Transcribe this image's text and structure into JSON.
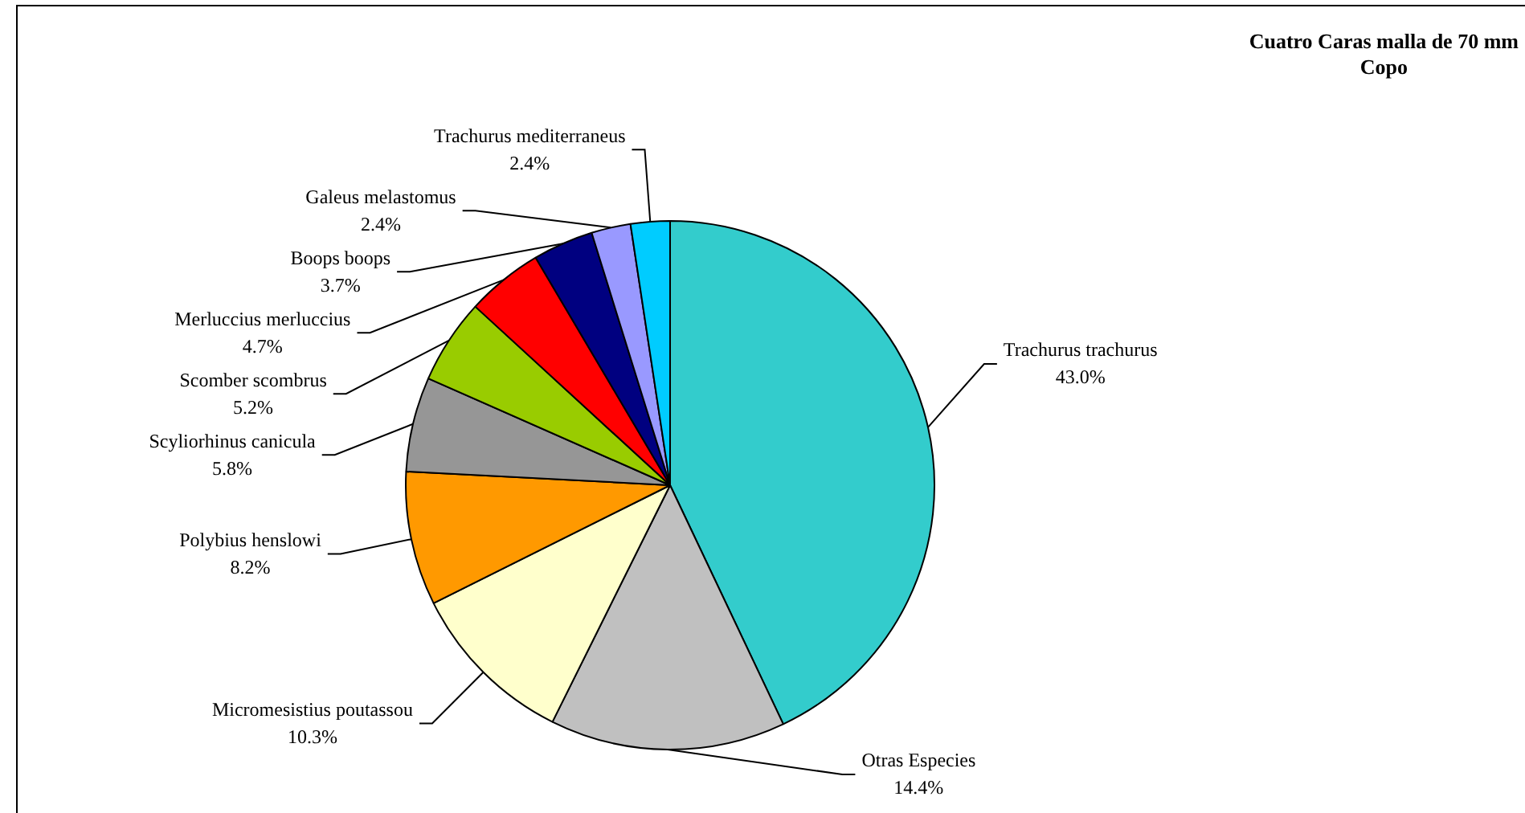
{
  "chart_data": {
    "type": "pie",
    "title": "Cuatro Caras malla de 70 mm",
    "subtitle": "Copo",
    "categories": [
      "Trachurus trachurus",
      "Otras Especies",
      "Micromesistius poutassou",
      "Polybius henslowi",
      "Scyliorhinus canicula",
      "Scomber scombrus",
      "Merluccius merluccius",
      "Boops boops",
      "Galeus melastomus",
      "Trachurus mediterraneus"
    ],
    "values": [
      43.0,
      14.4,
      10.3,
      8.2,
      5.8,
      5.2,
      4.7,
      3.7,
      2.4,
      2.4
    ],
    "value_labels": [
      "43.0%",
      "14.4%",
      "10.3%",
      "8.2%",
      "5.8%",
      "5.2%",
      "4.7%",
      "3.7%",
      "2.4%",
      "2.4%"
    ],
    "colors": [
      "#33cccc",
      "#c0c0c0",
      "#ffffcc",
      "#ff9900",
      "#969696",
      "#99cc00",
      "#ff0000",
      "#000080",
      "#9999ff",
      "#00ccff"
    ],
    "legend": false
  }
}
